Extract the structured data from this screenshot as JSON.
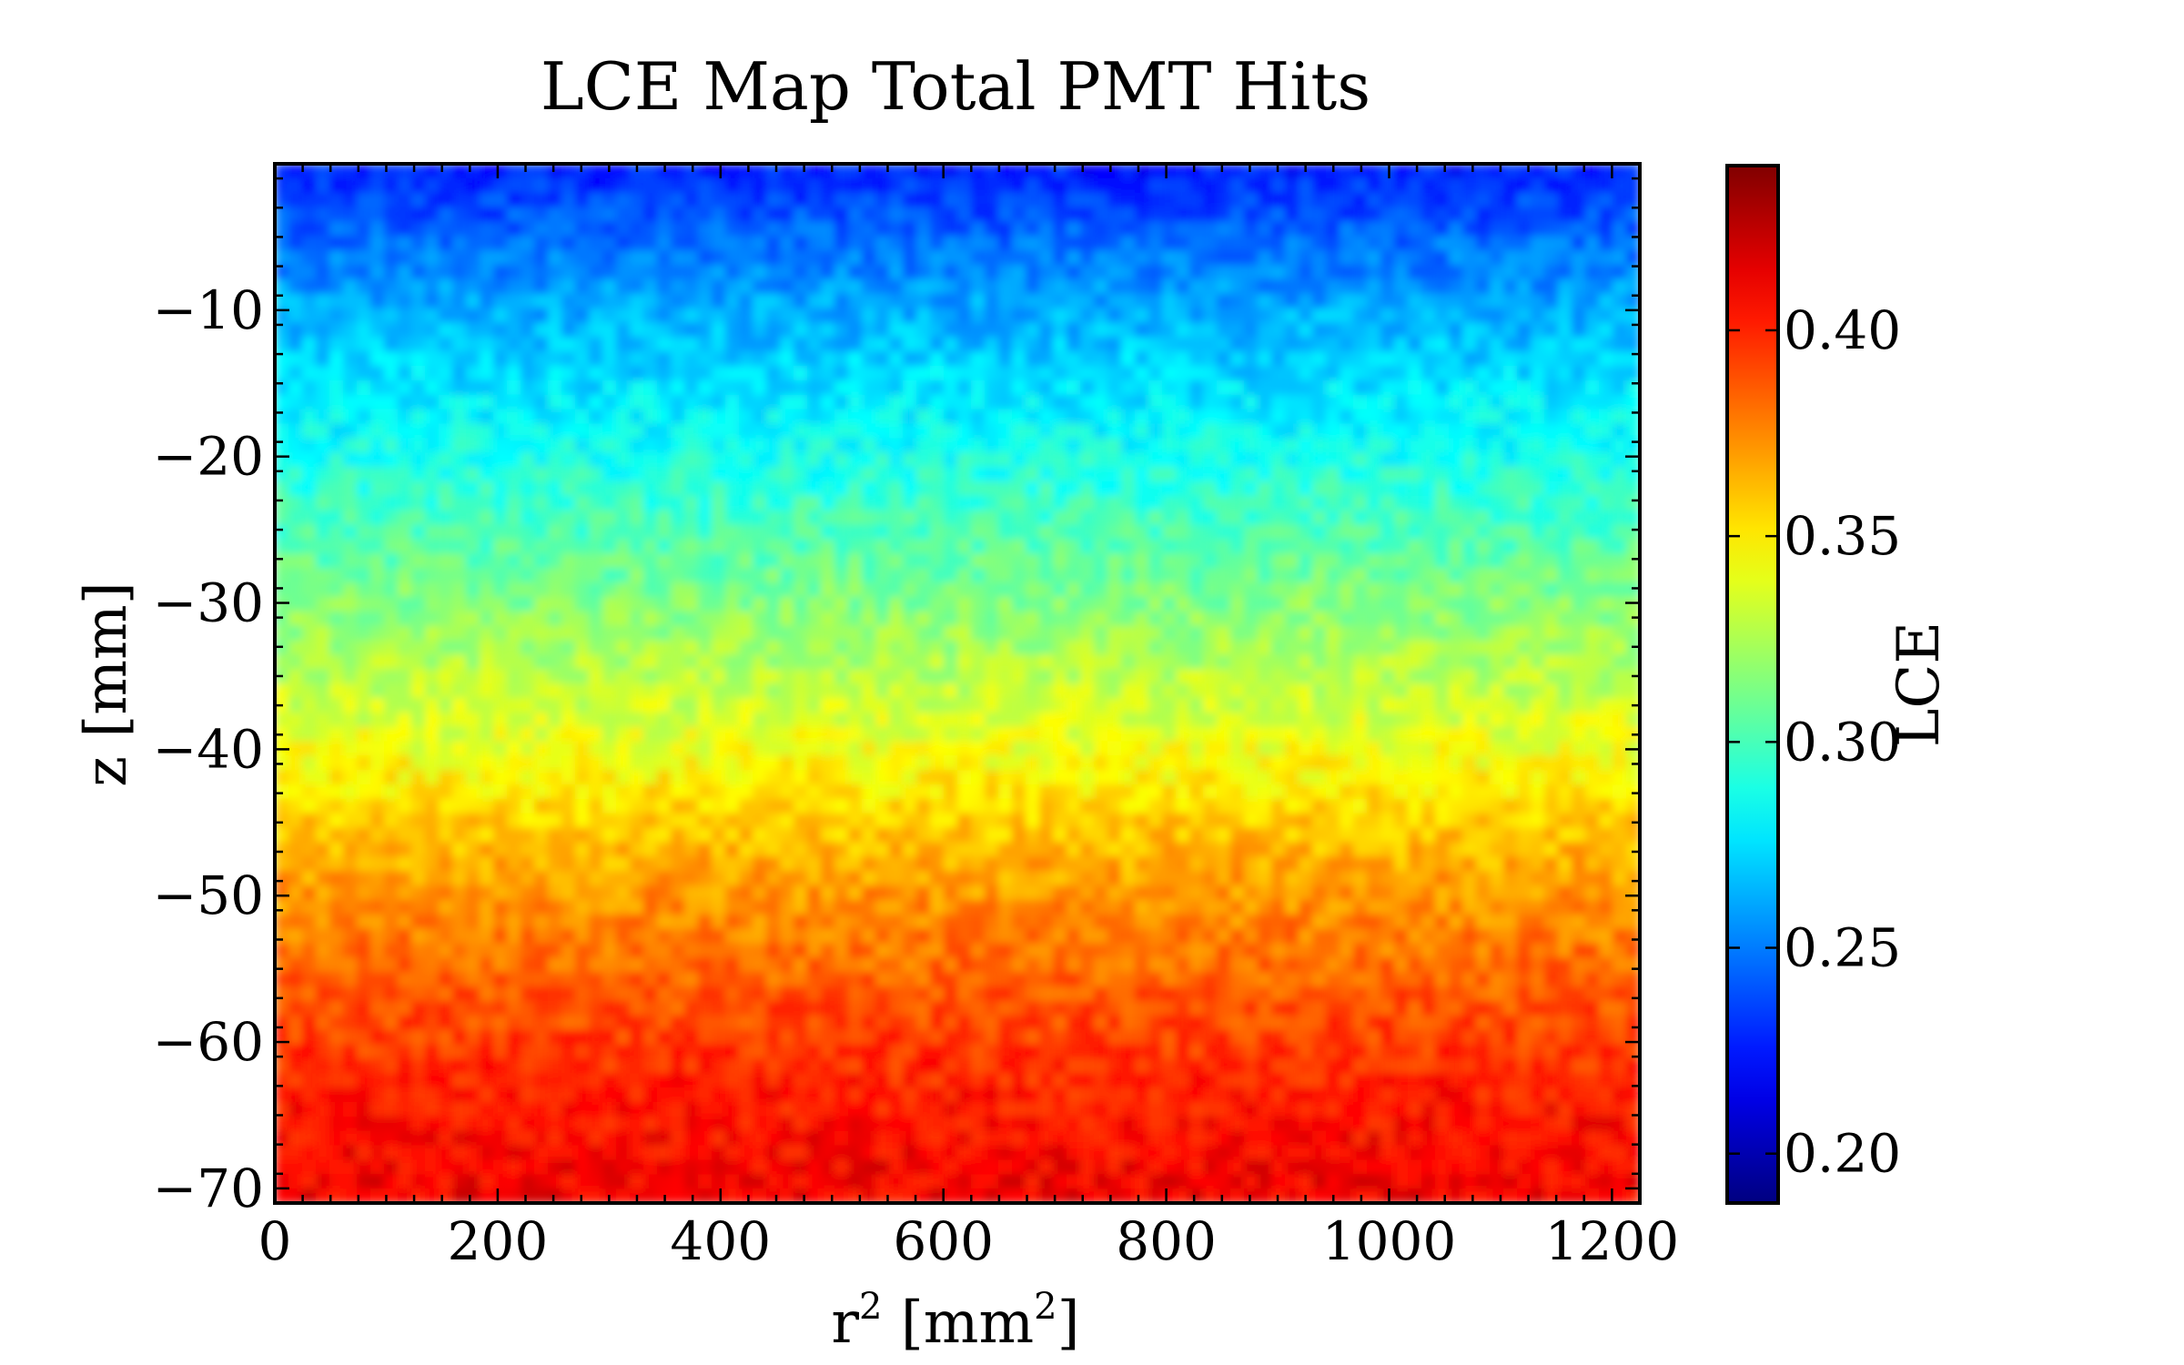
{
  "chart_data": {
    "type": "heatmap",
    "title": "LCE Map Total PMT Hits",
    "xlabel_base": "r",
    "xlabel_sup": "2",
    "xlabel_mid": " [mm",
    "xlabel_sup2": "2",
    "xlabel_end": "]",
    "ylabel": "z [mm]",
    "colorbar_label": "LCE",
    "xlim": [
      0,
      1225
    ],
    "ylim": [
      -71,
      0
    ],
    "clim": [
      0.188,
      0.44
    ],
    "colormap": "jet",
    "x_ticks": [
      0,
      200,
      400,
      600,
      800,
      1000,
      1200
    ],
    "x_tick_labels": [
      "0",
      "200",
      "400",
      "600",
      "800",
      "1000",
      "1200"
    ],
    "y_ticks": [
      -10,
      -20,
      -30,
      -40,
      -50,
      -60,
      -70
    ],
    "y_tick_labels": [
      "−10",
      "−20",
      "−30",
      "−40",
      "−50",
      "−60",
      "−70"
    ],
    "colorbar_ticks": [
      0.2,
      0.25,
      0.3,
      0.35,
      0.4
    ],
    "colorbar_tick_labels": [
      "0.20",
      "0.25",
      "0.30",
      "0.35",
      "0.40"
    ],
    "grid": false,
    "z_profile": {
      "z": [
        0,
        -5,
        -10,
        -15,
        -20,
        -25,
        -30,
        -35,
        -40,
        -45,
        -50,
        -55,
        -60,
        -65,
        -71
      ],
      "lce": [
        0.225,
        0.245,
        0.262,
        0.275,
        0.288,
        0.3,
        0.315,
        0.328,
        0.342,
        0.358,
        0.372,
        0.383,
        0.395,
        0.405,
        0.412
      ]
    },
    "noise_amplitude": 0.012,
    "colors": {
      "frame": "#000000",
      "background": "#ffffff"
    }
  }
}
